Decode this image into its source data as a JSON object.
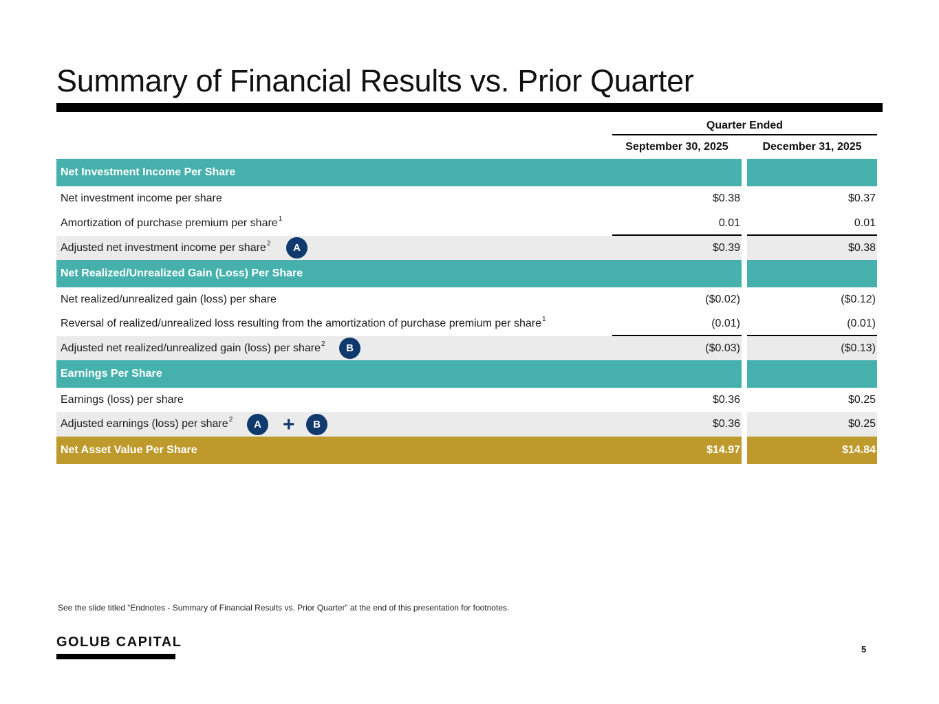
{
  "title": "Summary of Financial Results vs. Prior Quarter",
  "table": {
    "group_header": "Quarter Ended",
    "col1": "September 30, 2025",
    "col2": "December 31, 2025",
    "nii_section": "Net Investment Income Per Share",
    "nii": {
      "label": "Net investment income per share",
      "v1": "$0.38",
      "v2": "$0.37"
    },
    "amort": {
      "label": "Amortization of purchase premium per share",
      "sup": "1",
      "v1": "0.01",
      "v2": "0.01"
    },
    "adj_nii": {
      "label": "Adjusted net investment income per share",
      "sup": "2",
      "v1": "$0.39",
      "v2": "$0.38",
      "badge": "A"
    },
    "gain_section": "Net Realized/Unrealized Gain (Loss) Per Share",
    "gain": {
      "label": "Net realized/unrealized gain (loss) per share",
      "v1": "($0.02)",
      "v2": "($0.12)"
    },
    "reversal": {
      "label": "Reversal of realized/unrealized loss resulting from the amortization of purchase premium per share",
      "sup": "1",
      "v1": "(0.01)",
      "v2": "(0.01)"
    },
    "adj_gain": {
      "label": "Adjusted net realized/unrealized gain (loss) per share",
      "sup": "2",
      "v1": "($0.03)",
      "v2": "($0.13)",
      "badge": "B"
    },
    "eps_section": "Earnings Per Share",
    "eps": {
      "label": "Earnings (loss) per share",
      "v1": "$0.36",
      "v2": "$0.25"
    },
    "adj_eps": {
      "label": "Adjusted earnings (loss) per share",
      "sup": "2",
      "v1": "$0.36",
      "v2": "$0.25",
      "badge_a": "A",
      "plus": "+",
      "badge_b": "B"
    },
    "nav": {
      "label": "Net Asset Value Per Share",
      "v1": "$14.97",
      "v2": "$14.84"
    }
  },
  "footnote": "See the slide titled “Endnotes - Summary of Financial Results vs. Prior Quarter” at the end of this presentation for footnotes.",
  "logo": "GOLUB CAPITAL",
  "page_number": "5",
  "colors": {
    "teal": "#46b1ac",
    "gold": "#be9a2c",
    "navy": "#103a6e",
    "shade": "#ebebeb"
  }
}
